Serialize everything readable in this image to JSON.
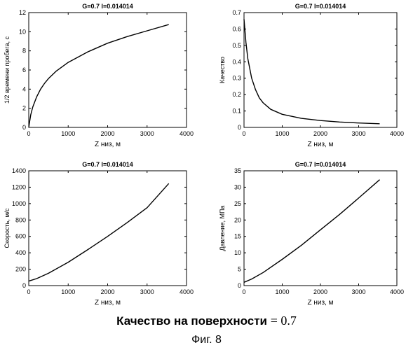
{
  "chart_data": [
    {
      "type": "line",
      "title": "G=0.7  l=0.014014",
      "xlabel": "Z низ, м",
      "ylabel": "1/2 времени пробега, с",
      "xlim": [
        0,
        4000
      ],
      "ylim": [
        0,
        12
      ],
      "xticks": [
        "0",
        "1000",
        "2000",
        "3000",
        "4000"
      ],
      "yticks": [
        "0",
        "2",
        "4",
        "6",
        "8",
        "10",
        "12"
      ],
      "series": [
        {
          "x": [
            0,
            50,
            100,
            200,
            300,
            400,
            500,
            700,
            1000,
            1500,
            2000,
            2500,
            3000,
            3550
          ],
          "y": [
            0,
            1.3,
            2.1,
            3.2,
            4.0,
            4.6,
            5.1,
            5.9,
            6.8,
            7.9,
            8.8,
            9.5,
            10.1,
            10.75
          ]
        }
      ]
    },
    {
      "type": "line",
      "title": "G=0.7  l=0.014014",
      "xlabel": "Z низ, м",
      "ylabel": "Качество",
      "xlim": [
        0,
        4000
      ],
      "ylim": [
        0,
        0.7
      ],
      "xticks": [
        "0",
        "1000",
        "2000",
        "3000",
        "4000"
      ],
      "yticks": [
        "0",
        "0.1",
        "0.2",
        "0.3",
        "0.4",
        "0.5",
        "0.6",
        "0.7"
      ],
      "series": [
        {
          "x": [
            0,
            50,
            100,
            200,
            300,
            400,
            500,
            700,
            1000,
            1500,
            2000,
            2500,
            3000,
            3550
          ],
          "y": [
            0.66,
            0.52,
            0.42,
            0.3,
            0.23,
            0.18,
            0.15,
            0.11,
            0.08,
            0.055,
            0.042,
            0.033,
            0.027,
            0.022
          ]
        }
      ]
    },
    {
      "type": "line",
      "title": "G=0.7  l=0.014014",
      "xlabel": "Z низ, м",
      "ylabel": "Скорость, м/с",
      "xlim": [
        0,
        4000
      ],
      "ylim": [
        0,
        1400
      ],
      "xticks": [
        "0",
        "1000",
        "2000",
        "3000",
        "4000"
      ],
      "yticks": [
        "0",
        "200",
        "400",
        "600",
        "800",
        "1000",
        "1200",
        "1400"
      ],
      "series": [
        {
          "x": [
            0,
            200,
            500,
            1000,
            1500,
            2000,
            2500,
            3000,
            3550
          ],
          "y": [
            55,
            85,
            150,
            285,
            440,
            600,
            770,
            950,
            1245
          ]
        }
      ]
    },
    {
      "type": "line",
      "title": "G=0.7 l=0.014014",
      "xlabel": "Z низ, м",
      "ylabel": "Давление, МПа",
      "xlim": [
        0,
        4000
      ],
      "ylim": [
        0,
        35
      ],
      "xticks": [
        "0",
        "1000",
        "2000",
        "3000",
        "4000"
      ],
      "yticks": [
        "0",
        "5",
        "10",
        "15",
        "20",
        "25",
        "30",
        "35"
      ],
      "series": [
        {
          "x": [
            0,
            200,
            500,
            1000,
            1500,
            2000,
            2500,
            3000,
            3550
          ],
          "y": [
            1.0,
            2.0,
            4.0,
            8.0,
            12.3,
            17.0,
            21.7,
            26.7,
            32.3
          ]
        }
      ]
    }
  ],
  "caption": {
    "quality_label": "Качество на поверхности",
    "quality_value": "= 0.7",
    "figure_label": "Фиг. 8"
  }
}
